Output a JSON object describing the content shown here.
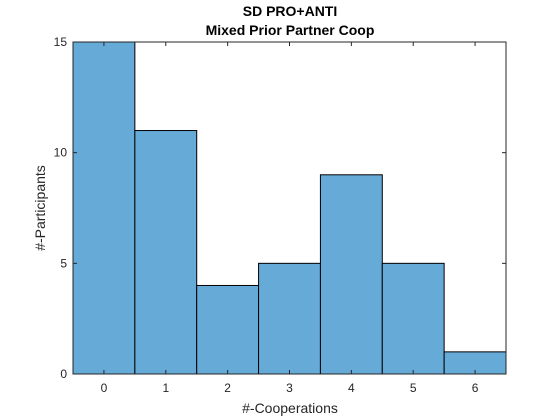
{
  "chart_data": {
    "type": "bar",
    "title": "SD PRO+ANTI",
    "subtitle": "Mixed Prior Partner Coop",
    "xlabel": "#-Cooperations",
    "ylabel": "#-Participants",
    "categories": [
      "0",
      "1",
      "2",
      "3",
      "4",
      "5",
      "6"
    ],
    "values": [
      15,
      11,
      4,
      5,
      9,
      5,
      1
    ],
    "xlim": [
      -0.5,
      6.5
    ],
    "ylim": [
      0,
      15
    ],
    "yticks": [
      0,
      5,
      10,
      15
    ],
    "grid": false,
    "bar_color": "#66aad8",
    "edge_color": "#000000"
  }
}
